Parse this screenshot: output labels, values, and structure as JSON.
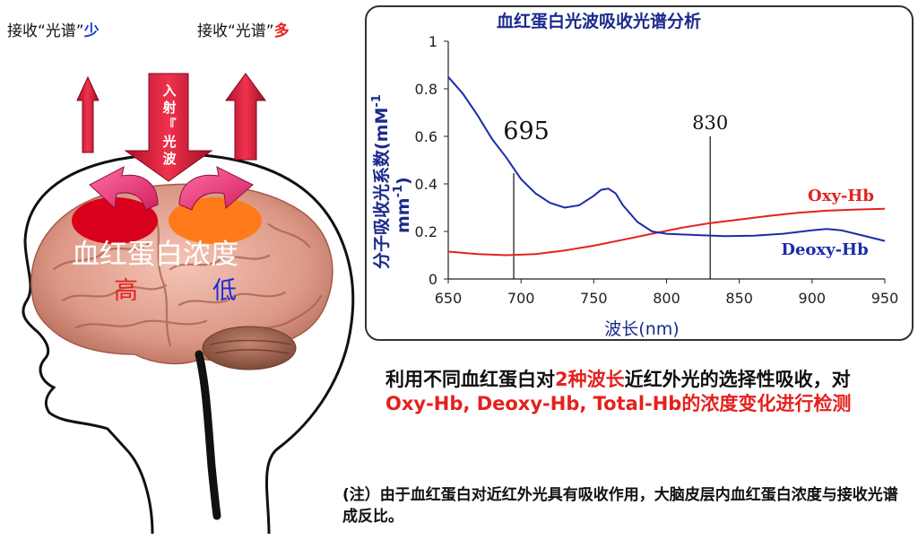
{
  "left_panel": {
    "label_low": {
      "prefix": "接收“光谱”",
      "emph": "少",
      "emph_color": "#1a3fd8"
    },
    "label_high": {
      "prefix": "接收“光谱”",
      "emph": "多",
      "emph_color": "#e4211e"
    },
    "incident_chars": [
      "入",
      "射",
      "『",
      "光",
      "波"
    ],
    "brain_label": "血红蛋白浓度",
    "high_label": "高",
    "low_label": "低"
  },
  "chart_data": {
    "type": "line",
    "title": "血红蛋白光波吸收光谱分析",
    "xlabel": "波长(nm)",
    "ylabel": "分子吸收光系数(mM-1 mm-1)",
    "ylabel_line1": "分子吸收光系数(mM",
    "ylabel_sup1": "-1",
    "ylabel_line2": "mm",
    "ylabel_sup2": "-1",
    "ylabel_close": ")",
    "xlim": [
      650,
      950
    ],
    "ylim": [
      0,
      1
    ],
    "x_ticks": [
      "650",
      "700",
      "750",
      "800",
      "850",
      "900",
      "950"
    ],
    "y_ticks": [
      "0",
      "0.2",
      "0.4",
      "0.6",
      "0.8",
      "1"
    ],
    "markers": [
      {
        "x": 695,
        "label": "695"
      },
      {
        "x": 830,
        "label": "830"
      }
    ],
    "series": [
      {
        "name": "Oxy-Hb",
        "color": "#e4211e",
        "x": [
          650,
          670,
          690,
          710,
          730,
          750,
          770,
          790,
          810,
          830,
          850,
          870,
          890,
          910,
          930,
          950
        ],
        "y": [
          0.115,
          0.105,
          0.1,
          0.105,
          0.12,
          0.14,
          0.165,
          0.19,
          0.215,
          0.235,
          0.25,
          0.265,
          0.278,
          0.287,
          0.292,
          0.295
        ]
      },
      {
        "name": "Deoxy-Hb",
        "color": "#1a2ca8",
        "x": [
          650,
          660,
          670,
          680,
          690,
          700,
          710,
          720,
          730,
          740,
          750,
          755,
          760,
          765,
          770,
          780,
          790,
          800,
          820,
          840,
          860,
          880,
          900,
          910,
          920,
          930,
          940,
          950
        ],
        "y": [
          0.85,
          0.78,
          0.69,
          0.59,
          0.51,
          0.42,
          0.36,
          0.32,
          0.3,
          0.31,
          0.35,
          0.375,
          0.38,
          0.36,
          0.31,
          0.24,
          0.2,
          0.19,
          0.185,
          0.18,
          0.182,
          0.19,
          0.205,
          0.21,
          0.205,
          0.19,
          0.175,
          0.16
        ]
      }
    ]
  },
  "description": {
    "part1": "利用不同血红蛋白对",
    "part2_red": "2种波长",
    "part3": "近红外光的选择性吸收，对",
    "part4_red": "Oxy-Hb, Deoxy-Hb, Total-Hb的浓度变化进行检测"
  },
  "note": {
    "text": "(注）由于血红蛋白对近红外光具有吸收作用，大脑皮层内血红蛋白浓度与接收光谱成反比。"
  }
}
